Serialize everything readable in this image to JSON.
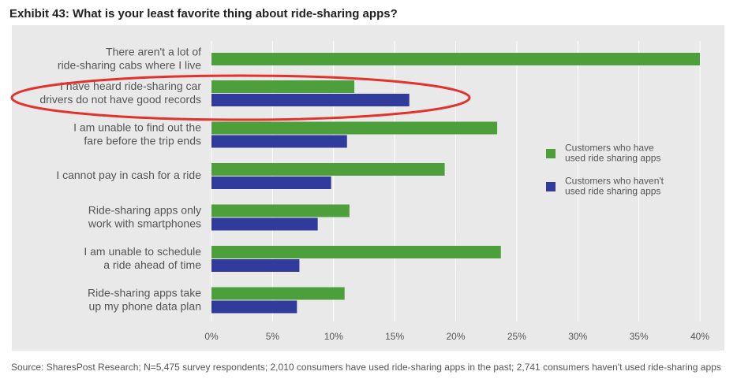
{
  "chart_data": {
    "type": "hbar",
    "title": "Exhibit 43: What is your least favorite thing about ride-sharing apps?",
    "categories": [
      "There aren't a lot of\nride-sharing cabs where I live",
      "I have heard ride-sharing car\ndrivers do not have good records",
      "I am unable to find out the\nfare before the trip ends",
      "I cannot pay in cash for a ride",
      "Ride-sharing apps only\nwork with smartphones",
      "I am unable to schedule\na ride ahead of time",
      "Ride-sharing apps take\nup my phone data plan"
    ],
    "series": [
      {
        "name": "Customers who have\nused ride sharing apps",
        "color": "#4d9f3c",
        "values": [
          40,
          11.7,
          23.4,
          19.1,
          11.3,
          23.7,
          10.9
        ]
      },
      {
        "name": "Customers who haven't\nused ride sharing apps",
        "color": "#303b9c",
        "values": [
          null,
          16.2,
          11.1,
          9.8,
          8.7,
          7.2,
          7.0
        ]
      }
    ],
    "xlim": [
      0,
      40
    ],
    "xticks": [
      {
        "value": 0,
        "label": "0%"
      },
      {
        "value": 5,
        "label": "5%"
      },
      {
        "value": 10,
        "label": "10%"
      },
      {
        "value": 15,
        "label": "15%"
      },
      {
        "value": 20,
        "label": "20%"
      },
      {
        "value": 25,
        "label": "25%"
      },
      {
        "value": 30,
        "label": "30%"
      },
      {
        "value": 35,
        "label": "35%"
      },
      {
        "value": 40,
        "label": "40%"
      }
    ],
    "grid": true,
    "source": "Source: SharesPost Research; N=5,475 survey respondents; 2,010 consumers have used ride-sharing apps in the past; 2,741 consumers haven't used ride-sharing apps"
  }
}
